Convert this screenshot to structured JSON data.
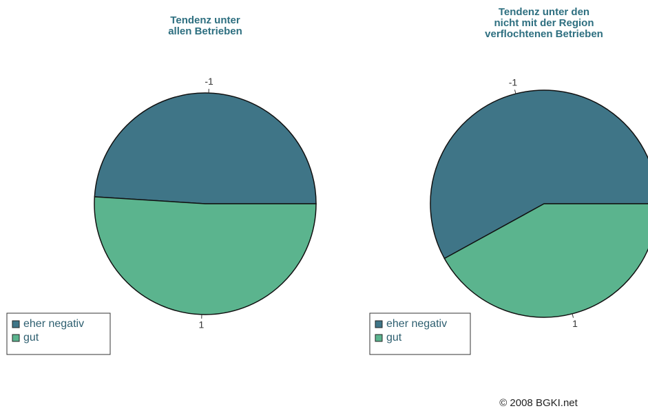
{
  "chart_data": [
    {
      "type": "pie",
      "title": [
        "Tendenz unter",
        "allen Betrieben"
      ],
      "categories": [
        "eher negativ",
        "gut"
      ],
      "labels": [
        "-1",
        "1"
      ],
      "values": [
        49,
        51
      ],
      "colors": [
        "#3f7587",
        "#5bb48e"
      ]
    },
    {
      "type": "pie",
      "title": [
        "Tendenz unter den",
        "nicht mit der Region",
        "verflochtenen Betrieben"
      ],
      "categories": [
        "eher negativ",
        "gut"
      ],
      "labels": [
        "-1",
        "1"
      ],
      "values": [
        58,
        42
      ],
      "colors": [
        "#3f7587",
        "#5bb48e"
      ]
    }
  ],
  "footer": "© 2008 BGKI.net"
}
